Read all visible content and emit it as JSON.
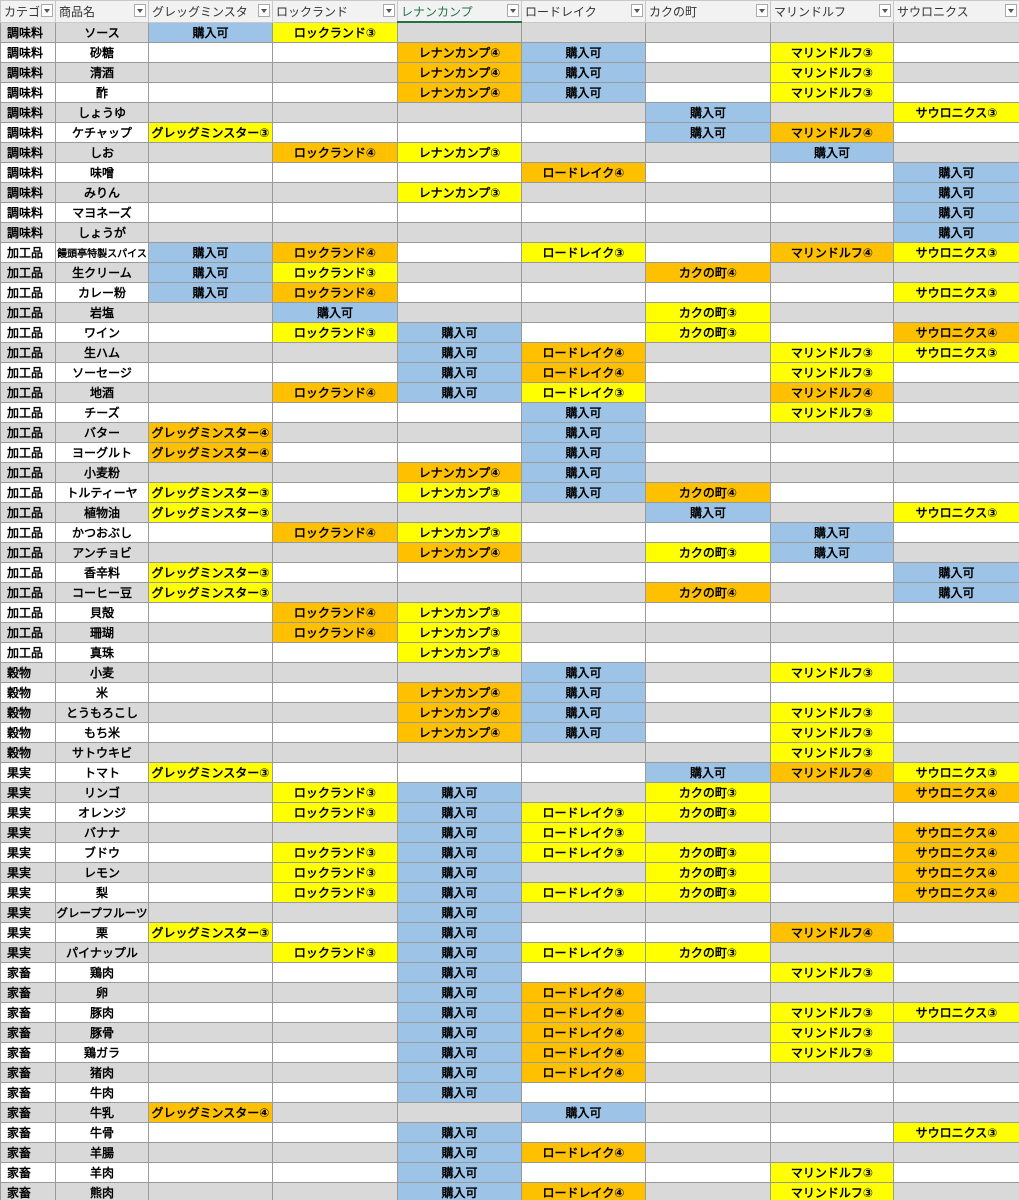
{
  "table": {
    "headers": [
      "カテゴ",
      "商品名",
      "グレッグミンスタ",
      "ロックランド",
      "レナンカンプ",
      "ロードレイク",
      "カクの町",
      "マリンドルフ",
      "サウロニクス"
    ],
    "fill_by_suffix": {
      "③": "#ffff00",
      "④": "#ffc000"
    },
    "default_fill": "#9dc3e6",
    "rows": [
      [
        "調味料",
        "ソース",
        "購入可",
        "ロックランド③",
        null,
        null,
        null,
        null,
        null
      ],
      [
        "調味料",
        "砂糖",
        null,
        null,
        "レナンカンプ④",
        "購入可",
        null,
        "マリンドルフ③",
        null
      ],
      [
        "調味料",
        "清酒",
        null,
        null,
        "レナンカンプ④",
        "購入可",
        null,
        "マリンドルフ③",
        null
      ],
      [
        "調味料",
        "酢",
        null,
        null,
        "レナンカンプ④",
        "購入可",
        null,
        "マリンドルフ③",
        null
      ],
      [
        "調味料",
        "しょうゆ",
        null,
        null,
        null,
        null,
        "購入可",
        null,
        "サウロニクス③"
      ],
      [
        "調味料",
        "ケチャップ",
        "グレッグミンスター③",
        null,
        null,
        null,
        "購入可",
        "マリンドルフ④",
        null
      ],
      [
        "調味料",
        "しお",
        null,
        "ロックランド④",
        "レナンカンプ③",
        null,
        null,
        "購入可",
        null
      ],
      [
        "調味料",
        "味噌",
        null,
        null,
        null,
        "ロードレイク④",
        null,
        null,
        "購入可"
      ],
      [
        "調味料",
        "みりん",
        null,
        null,
        "レナンカンプ③",
        null,
        null,
        null,
        "購入可"
      ],
      [
        "調味料",
        "マヨネーズ",
        null,
        null,
        null,
        null,
        null,
        null,
        "購入可"
      ],
      [
        "調味料",
        "しょうが",
        null,
        null,
        null,
        null,
        null,
        null,
        "購入可"
      ],
      [
        "加工品",
        "饅頭亭特製スパイス",
        "購入可",
        "ロックランド④",
        null,
        "ロードレイク③",
        null,
        "マリンドルフ④",
        "サウロニクス③"
      ],
      [
        "加工品",
        "生クリーム",
        "購入可",
        "ロックランド③",
        null,
        null,
        "カクの町④",
        null,
        null
      ],
      [
        "加工品",
        "カレー粉",
        "購入可",
        "ロックランド④",
        null,
        null,
        null,
        null,
        "サウロニクス③"
      ],
      [
        "加工品",
        "岩塩",
        null,
        "購入可",
        null,
        null,
        "カクの町③",
        null,
        null
      ],
      [
        "加工品",
        "ワイン",
        null,
        "ロックランド③",
        "購入可",
        null,
        "カクの町③",
        null,
        "サウロニクス④"
      ],
      [
        "加工品",
        "生ハム",
        null,
        null,
        "購入可",
        "ロードレイク④",
        null,
        "マリンドルフ③",
        "サウロニクス③"
      ],
      [
        "加工品",
        "ソーセージ",
        null,
        null,
        "購入可",
        "ロードレイク④",
        null,
        "マリンドルフ③",
        null
      ],
      [
        "加工品",
        "地酒",
        null,
        "ロックランド④",
        "購入可",
        "ロードレイク③",
        null,
        "マリンドルフ④",
        null
      ],
      [
        "加工品",
        "チーズ",
        null,
        null,
        null,
        "購入可",
        null,
        "マリンドルフ③",
        null
      ],
      [
        "加工品",
        "バター",
        "グレッグミンスター④",
        null,
        null,
        "購入可",
        null,
        null,
        null
      ],
      [
        "加工品",
        "ヨーグルト",
        "グレッグミンスター④",
        null,
        null,
        "購入可",
        null,
        null,
        null
      ],
      [
        "加工品",
        "小麦粉",
        null,
        null,
        "レナンカンプ④",
        "購入可",
        null,
        null,
        null
      ],
      [
        "加工品",
        "トルティーヤ",
        "グレッグミンスター③",
        null,
        "レナンカンプ③",
        "購入可",
        "カクの町④",
        null,
        null
      ],
      [
        "加工品",
        "植物油",
        "グレッグミンスター③",
        null,
        null,
        null,
        "購入可",
        null,
        "サウロニクス③"
      ],
      [
        "加工品",
        "かつおぶし",
        null,
        "ロックランド④",
        "レナンカンプ③",
        null,
        null,
        "購入可",
        null
      ],
      [
        "加工品",
        "アンチョビ",
        null,
        null,
        "レナンカンプ④",
        null,
        "カクの町③",
        "購入可",
        null
      ],
      [
        "加工品",
        "香辛料",
        "グレッグミンスター③",
        null,
        null,
        null,
        null,
        null,
        "購入可"
      ],
      [
        "加工品",
        "コーヒー豆",
        "グレッグミンスター③",
        null,
        null,
        null,
        "カクの町④",
        null,
        "購入可"
      ],
      [
        "加工品",
        "貝殻",
        null,
        "ロックランド④",
        "レナンカンプ③",
        null,
        null,
        null,
        null
      ],
      [
        "加工品",
        "珊瑚",
        null,
        "ロックランド④",
        "レナンカンプ③",
        null,
        null,
        null,
        null
      ],
      [
        "加工品",
        "真珠",
        null,
        null,
        "レナンカンプ③",
        null,
        null,
        null,
        null
      ],
      [
        "穀物",
        "小麦",
        null,
        null,
        null,
        "購入可",
        null,
        "マリンドルフ③",
        null
      ],
      [
        "穀物",
        "米",
        null,
        null,
        "レナンカンプ④",
        "購入可",
        null,
        null,
        null
      ],
      [
        "穀物",
        "とうもろこし",
        null,
        null,
        "レナンカンプ④",
        "購入可",
        null,
        "マリンドルフ③",
        null
      ],
      [
        "穀物",
        "もち米",
        null,
        null,
        "レナンカンプ④",
        "購入可",
        null,
        "マリンドルフ③",
        null
      ],
      [
        "穀物",
        "サトウキビ",
        null,
        null,
        null,
        null,
        null,
        "マリンドルフ③",
        null
      ],
      [
        "果実",
        "トマト",
        "グレッグミンスター③",
        null,
        null,
        null,
        "購入可",
        "マリンドルフ④",
        "サウロニクス③"
      ],
      [
        "果実",
        "リンゴ",
        null,
        "ロックランド③",
        "購入可",
        null,
        "カクの町③",
        null,
        "サウロニクス④"
      ],
      [
        "果実",
        "オレンジ",
        null,
        "ロックランド③",
        "購入可",
        "ロードレイク③",
        "カクの町③",
        null,
        null
      ],
      [
        "果実",
        "バナナ",
        null,
        null,
        "購入可",
        "ロードレイク③",
        null,
        null,
        "サウロニクス④"
      ],
      [
        "果実",
        "ブドウ",
        null,
        "ロックランド③",
        "購入可",
        "ロードレイク③",
        "カクの町③",
        null,
        "サウロニクス④"
      ],
      [
        "果実",
        "レモン",
        null,
        "ロックランド③",
        "購入可",
        null,
        "カクの町③",
        null,
        "サウロニクス④"
      ],
      [
        "果実",
        "梨",
        null,
        "ロックランド③",
        "購入可",
        "ロードレイク③",
        "カクの町③",
        null,
        "サウロニクス④"
      ],
      [
        "果実",
        "グレープフルーツ",
        null,
        null,
        "購入可",
        null,
        null,
        null,
        null
      ],
      [
        "果実",
        "栗",
        "グレッグミンスター③",
        null,
        "購入可",
        null,
        null,
        "マリンドルフ④",
        null
      ],
      [
        "果実",
        "パイナップル",
        null,
        "ロックランド③",
        "購入可",
        "ロードレイク③",
        "カクの町③",
        null,
        null
      ],
      [
        "家畜",
        "鶏肉",
        null,
        null,
        "購入可",
        null,
        null,
        "マリンドルフ③",
        null
      ],
      [
        "家畜",
        "卵",
        null,
        null,
        "購入可",
        "ロードレイク④",
        null,
        null,
        null
      ],
      [
        "家畜",
        "豚肉",
        null,
        null,
        "購入可",
        "ロードレイク④",
        null,
        "マリンドルフ③",
        "サウロニクス③"
      ],
      [
        "家畜",
        "豚骨",
        null,
        null,
        "購入可",
        "ロードレイク④",
        null,
        "マリンドルフ③",
        null
      ],
      [
        "家畜",
        "鶏ガラ",
        null,
        null,
        "購入可",
        "ロードレイク④",
        null,
        "マリンドルフ③",
        null
      ],
      [
        "家畜",
        "猪肉",
        null,
        null,
        "購入可",
        "ロードレイク④",
        null,
        null,
        null
      ],
      [
        "家畜",
        "牛肉",
        null,
        null,
        "購入可",
        null,
        null,
        null,
        null
      ],
      [
        "家畜",
        "牛乳",
        "グレッグミンスター④",
        null,
        null,
        "購入可",
        null,
        null,
        null
      ],
      [
        "家畜",
        "牛骨",
        null,
        null,
        "購入可",
        null,
        null,
        null,
        "サウロニクス③"
      ],
      [
        "家畜",
        "羊腸",
        null,
        null,
        "購入可",
        "ロードレイク④",
        null,
        null,
        null
      ],
      [
        "家畜",
        "羊肉",
        null,
        null,
        "購入可",
        null,
        null,
        "マリンドルフ③",
        null
      ],
      [
        "家畜",
        "熊肉",
        null,
        null,
        "購入可",
        "ロードレイク④",
        null,
        "マリンドルフ③",
        null
      ]
    ]
  }
}
